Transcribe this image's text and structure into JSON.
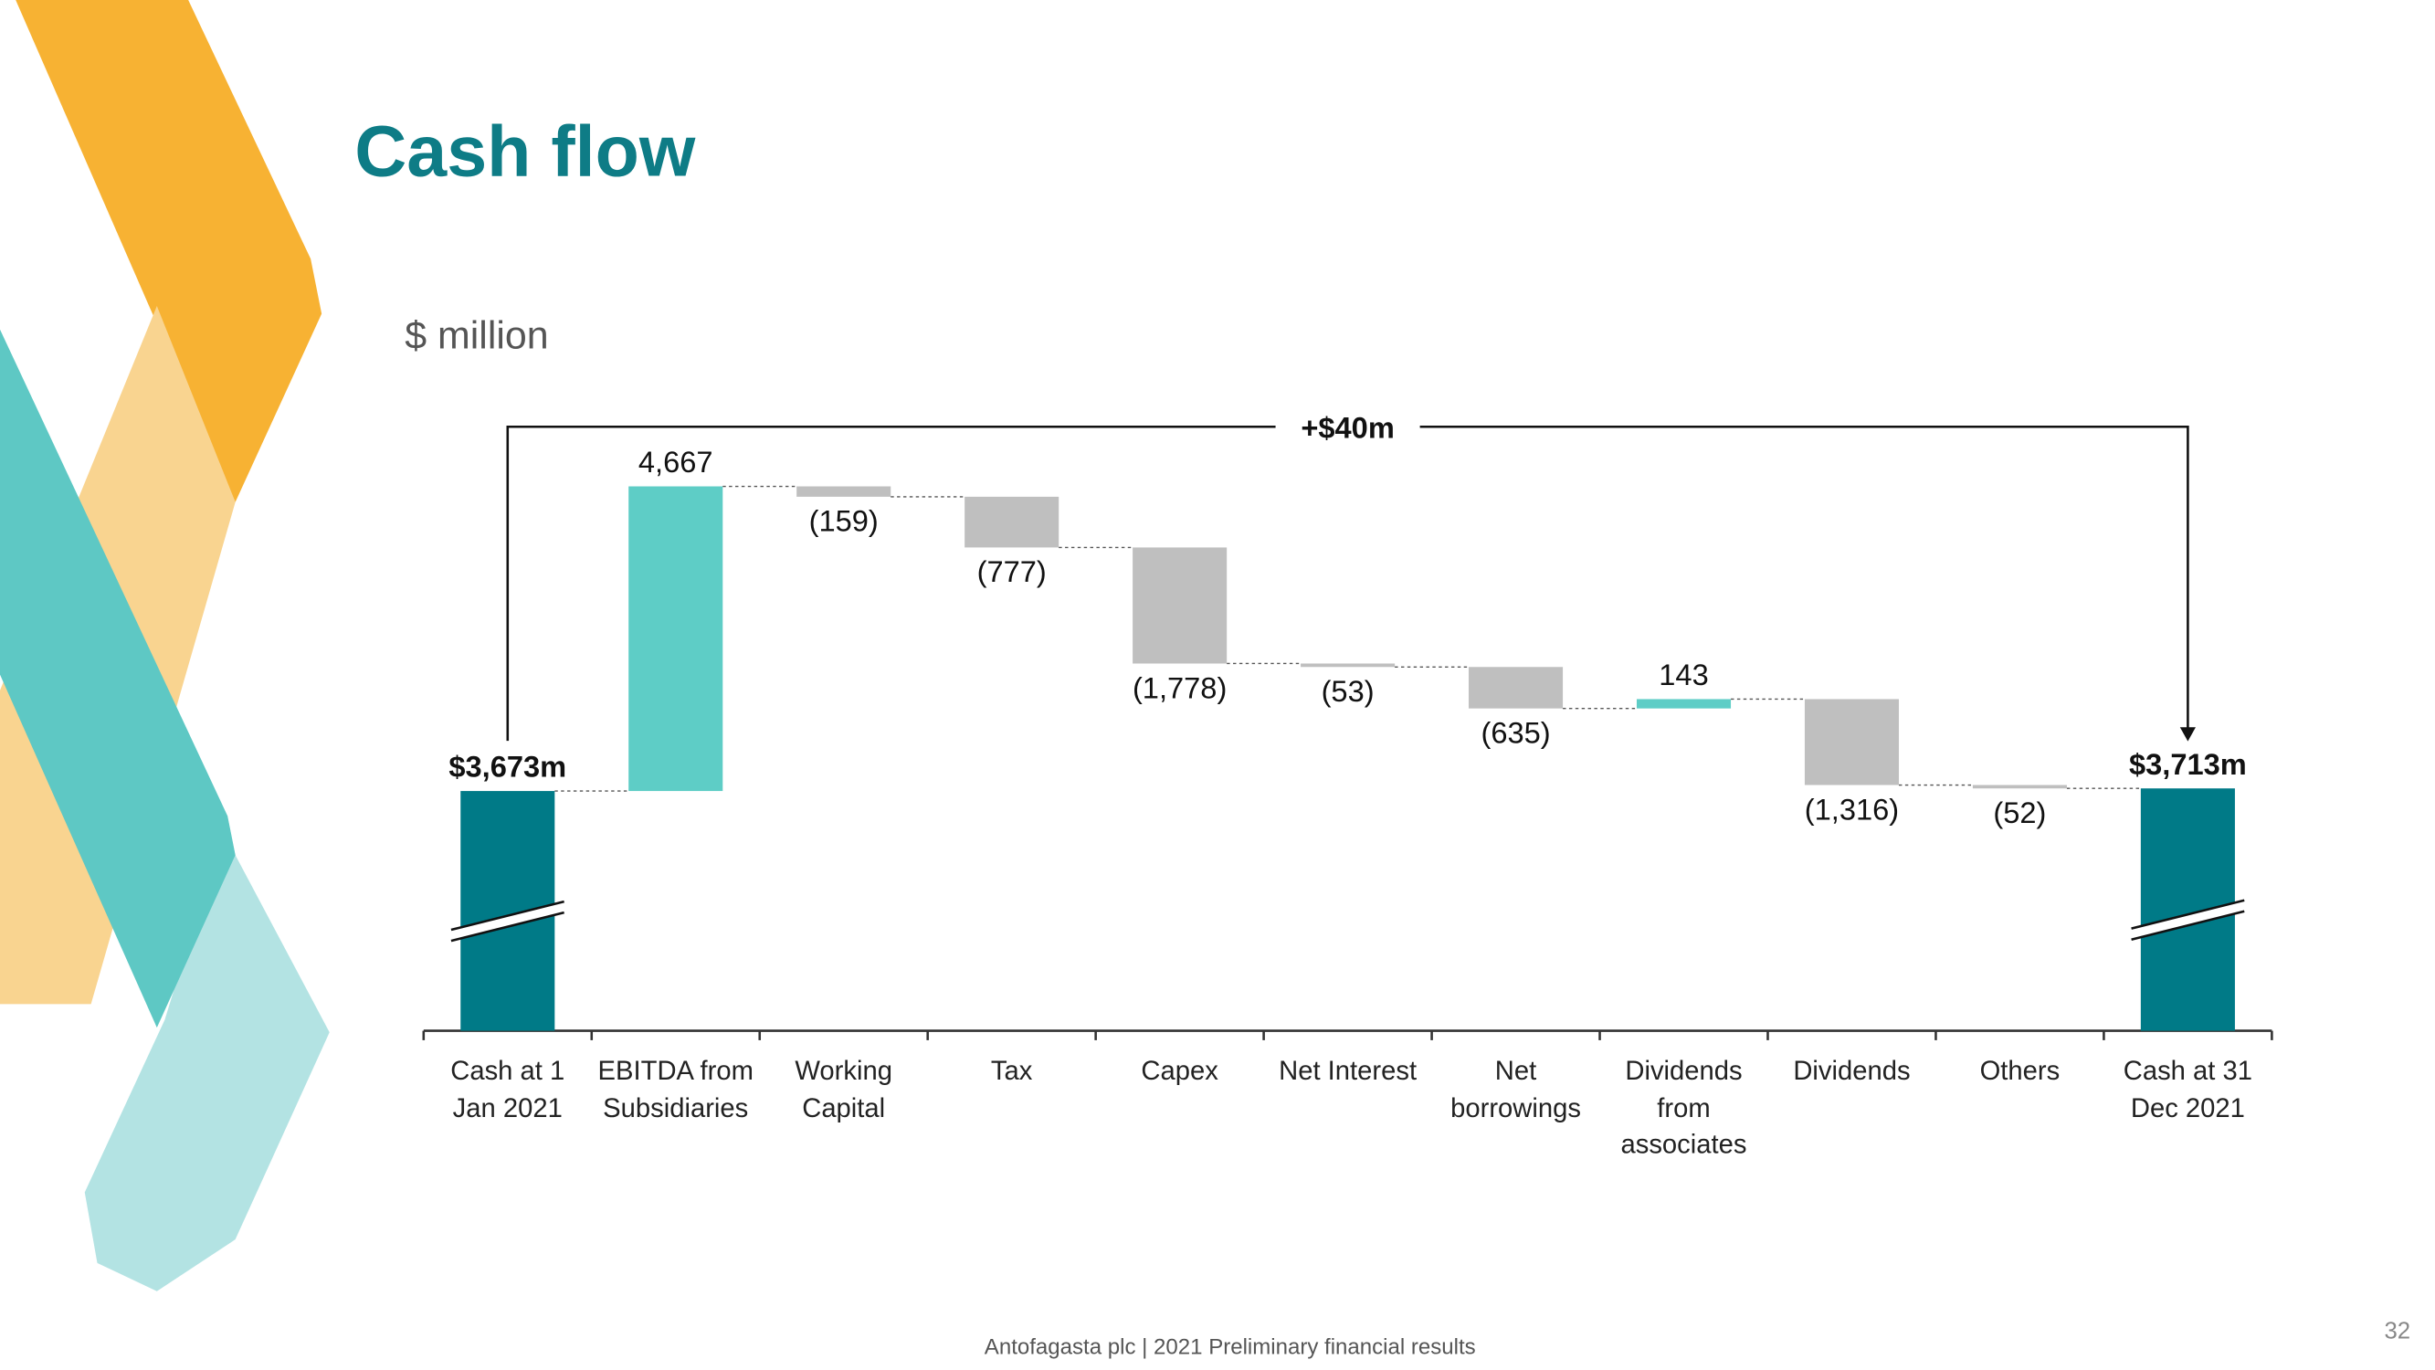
{
  "page": {
    "title": "Cash flow",
    "footer": "Antofagasta plc | 2021 Preliminary financial results",
    "page_number": "32"
  },
  "chart_data": {
    "type": "waterfall",
    "subtitle": "$ million",
    "annotation": "+$40m",
    "categories": [
      "Cash at 1 Jan 2021",
      "EBITDA from Subsidiaries",
      "Working Capital",
      "Tax",
      "Capex",
      "Net Interest",
      "Net borrowings",
      "Dividends from associates",
      "Dividends",
      "Others",
      "Cash at 31 Dec 2021"
    ],
    "values": [
      3673,
      4667,
      -159,
      -777,
      -1778,
      -53,
      -635,
      143,
      -1316,
      -52,
      3713
    ],
    "value_labels": [
      "$3,673m",
      "4,667",
      "(159)",
      "(777)",
      "(1,778)",
      "(53)",
      "(635)",
      "143",
      "(1,316)",
      "(52)",
      "$3,713m"
    ],
    "measure": [
      "total",
      "relative",
      "relative",
      "relative",
      "relative",
      "relative",
      "relative",
      "relative",
      "relative",
      "relative",
      "total"
    ],
    "colors": {
      "total": "#007a87",
      "increase": "#5ecdc6",
      "decrease": "#bfbfbf"
    },
    "axis_break": true
  }
}
